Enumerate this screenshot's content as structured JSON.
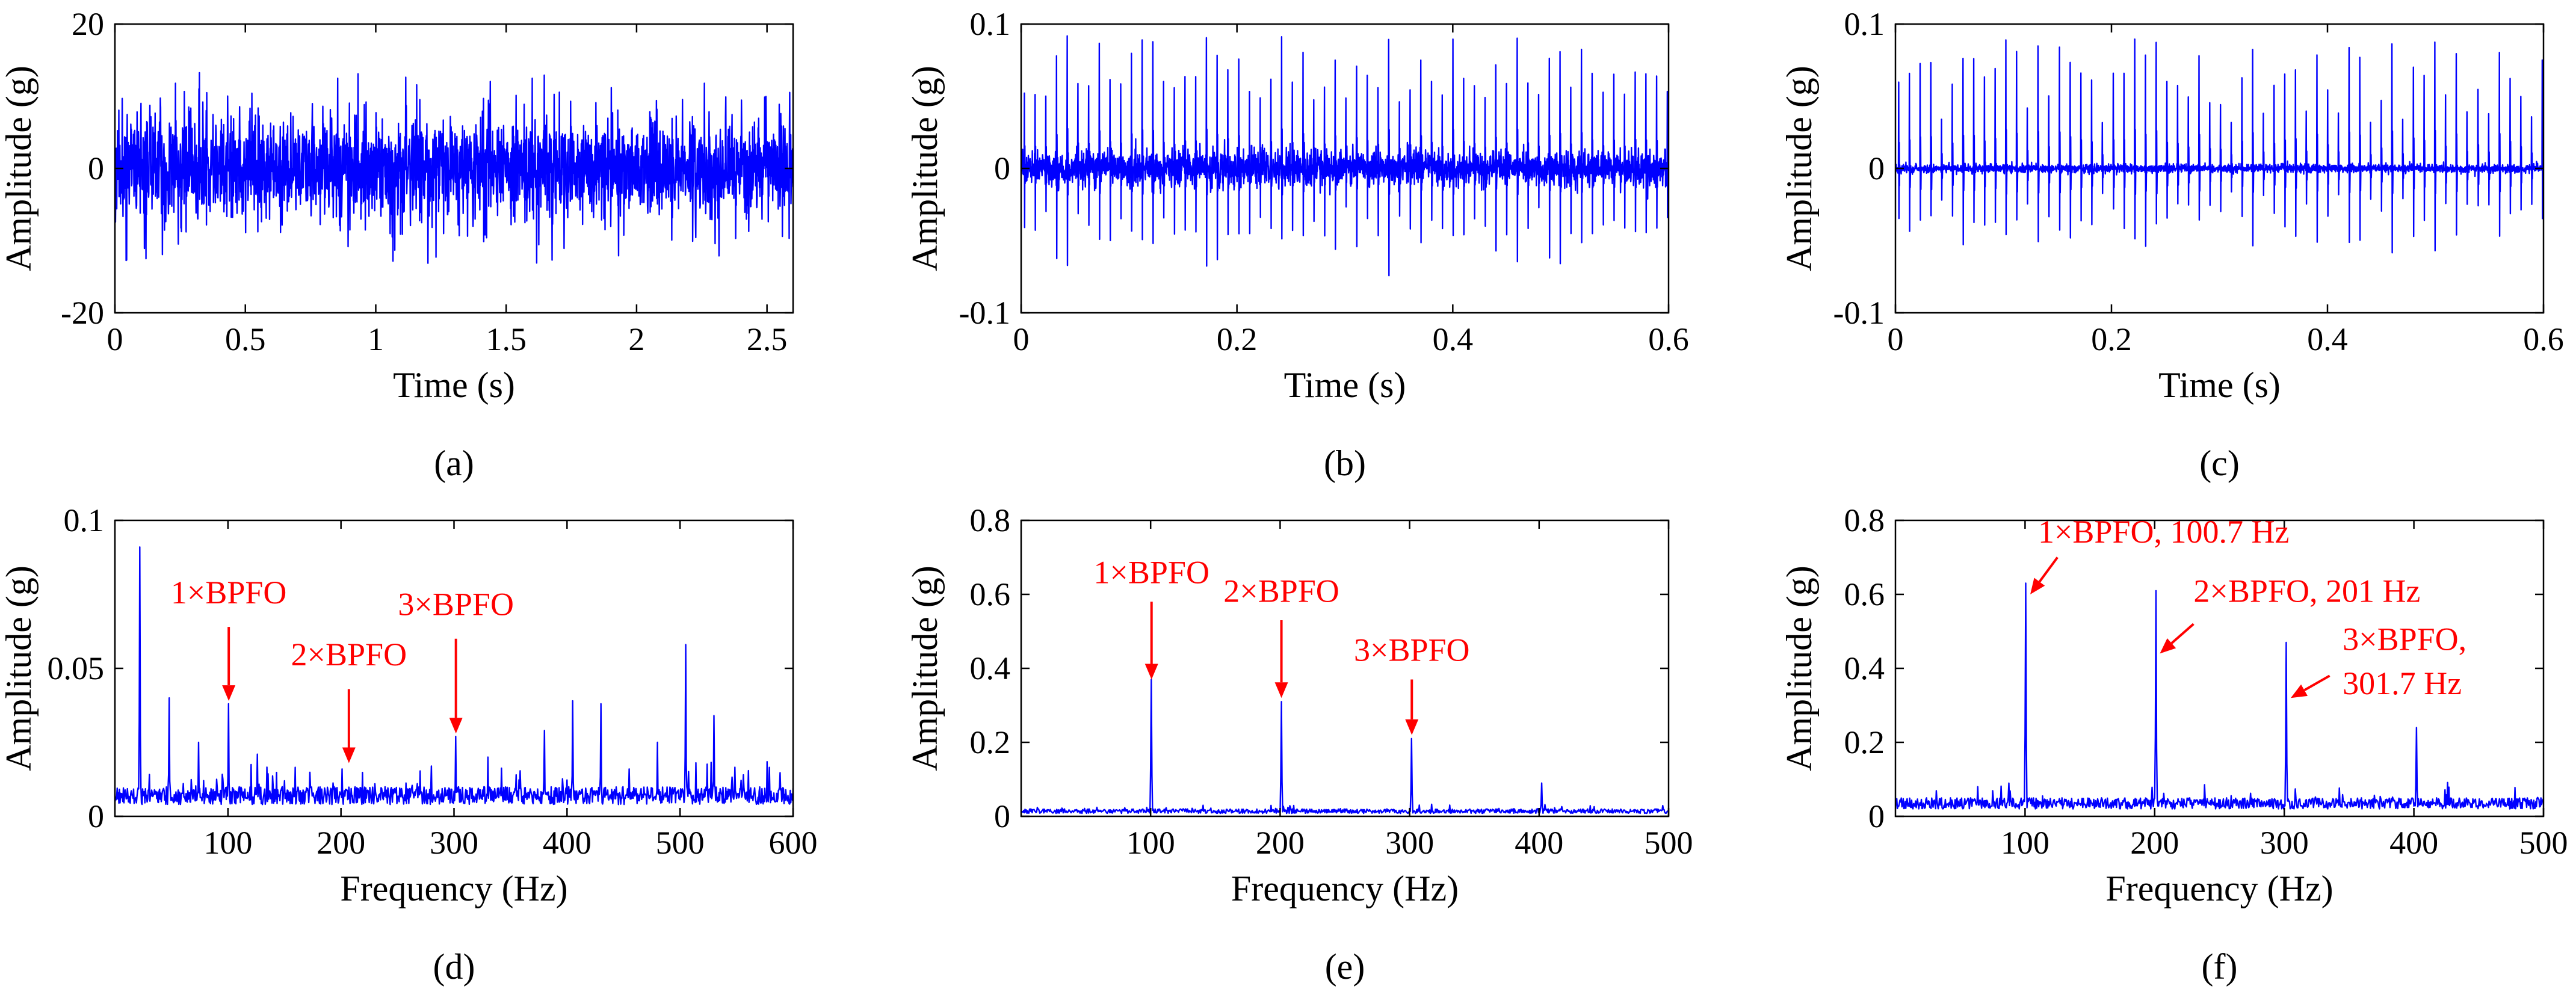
{
  "figure": {
    "colors": {
      "signal": "#0000ff",
      "annotation": "#ff0000",
      "axis": "#000000"
    }
  },
  "chart_data": [
    {
      "id": "a",
      "caption": "(a)",
      "type": "line",
      "xlabel": "Time (s)",
      "ylabel": "Amplitude (g)",
      "xlim": [
        0,
        2.6
      ],
      "ylim": [
        -20,
        20
      ],
      "xticks": [
        0,
        0.5,
        1,
        1.5,
        2,
        2.5
      ],
      "xtick_labels": [
        "0",
        "0.5",
        "1",
        "1.5",
        "2",
        "2.5"
      ],
      "yticks": [
        -20,
        0,
        20
      ],
      "ytick_labels": [
        "-20",
        "0",
        "20"
      ],
      "signal": {
        "kind": "noise",
        "seed": 11,
        "n": 2600,
        "base_amplitude": 8,
        "max_amplitude": 14,
        "max_y": 14,
        "min_y": -15
      },
      "annotations": []
    },
    {
      "id": "b",
      "caption": "(b)",
      "type": "line",
      "xlabel": "Time (s)",
      "ylabel": "Amplitude (g)",
      "xlim": [
        0,
        0.6
      ],
      "ylim": [
        -0.1,
        0.1
      ],
      "xticks": [
        0,
        0.2,
        0.4,
        0.6
      ],
      "xtick_labels": [
        "0",
        "0.2",
        "0.4",
        "0.6"
      ],
      "yticks": [
        -0.1,
        0,
        0.1
      ],
      "ytick_labels": [
        "-0.1",
        "0",
        "0.1"
      ],
      "signal": {
        "kind": "impulses",
        "seed": 23,
        "n": 2600,
        "period": 0.00993,
        "noise": 0.006,
        "peak_min": 0.045,
        "peak_max": 0.092,
        "neg_ratio": 0.85
      },
      "annotations": []
    },
    {
      "id": "c",
      "caption": "(c)",
      "type": "line",
      "xlabel": "Time (s)",
      "ylabel": "Amplitude (g)",
      "xlim": [
        0,
        0.6
      ],
      "ylim": [
        -0.1,
        0.1
      ],
      "xticks": [
        0,
        0.2,
        0.4,
        0.6
      ],
      "xtick_labels": [
        "0",
        "0.2",
        "0.4",
        "0.6"
      ],
      "yticks": [
        -0.1,
        0,
        0.1
      ],
      "ytick_labels": [
        "-0.1",
        "0",
        "0.1"
      ],
      "signal": {
        "kind": "impulses",
        "seed": 37,
        "n": 2600,
        "period": 0.00993,
        "noise": 0.0015,
        "peak_min": 0.03,
        "peak_max": 0.09,
        "neg_ratio": 0.7
      },
      "annotations": []
    },
    {
      "id": "d",
      "caption": "(d)",
      "type": "line",
      "xlabel": "Frequency (Hz)",
      "ylabel": "Amplitude (g)",
      "xlim": [
        0,
        600
      ],
      "ylim": [
        0,
        0.1
      ],
      "xticks": [
        100,
        200,
        300,
        400,
        500,
        600
      ],
      "xtick_labels": [
        "100",
        "200",
        "300",
        "400",
        "500",
        "600"
      ],
      "yticks": [
        0,
        0.05,
        0.1
      ],
      "ytick_labels": [
        "0",
        "0.05",
        "0.1"
      ],
      "signal": {
        "kind": "spectrum",
        "seed": 51,
        "xmax": 600,
        "n": 1200,
        "floor": 0.004,
        "floor_var": 0.006,
        "peaks": [
          [
            22,
            0.091
          ],
          [
            48,
            0.04
          ],
          [
            74,
            0.025
          ],
          [
            100.7,
            0.038
          ],
          [
            126,
            0.021
          ],
          [
            150,
            0.012
          ],
          [
            201,
            0.016
          ],
          [
            230,
            0.011
          ],
          [
            280,
            0.017
          ],
          [
            301.7,
            0.027
          ],
          [
            330,
            0.02
          ],
          [
            355,
            0.014
          ],
          [
            380,
            0.029
          ],
          [
            405,
            0.039
          ],
          [
            430,
            0.038
          ],
          [
            455,
            0.016
          ],
          [
            480,
            0.025
          ],
          [
            505,
            0.058
          ],
          [
            530,
            0.034
          ],
          [
            556,
            0.014
          ]
        ]
      },
      "annotations": [
        {
          "text": "1×BPFO",
          "tip": [
            100.7,
            0.039
          ],
          "tail": [
            100.7,
            0.064
          ],
          "label": [
            100.7,
            0.072
          ],
          "anchor": "middle"
        },
        {
          "text": "2×BPFO",
          "tip": [
            207,
            0.018
          ],
          "tail": [
            207,
            0.043
          ],
          "label": [
            207,
            0.051
          ],
          "anchor": "middle"
        },
        {
          "text": "3×BPFO",
          "tip": [
            301.7,
            0.028
          ],
          "tail": [
            301.7,
            0.06
          ],
          "label": [
            301.7,
            0.068
          ],
          "anchor": "middle"
        }
      ]
    },
    {
      "id": "e",
      "caption": "(e)",
      "type": "line",
      "xlabel": "Frequency (Hz)",
      "ylabel": "Amplitude (g)",
      "xlim": [
        0,
        500
      ],
      "ylim": [
        0,
        0.8
      ],
      "xticks": [
        100,
        200,
        300,
        400,
        500
      ],
      "xtick_labels": [
        "100",
        "200",
        "300",
        "400",
        "500"
      ],
      "yticks": [
        0,
        0.2,
        0.4,
        0.6,
        0.8
      ],
      "ytick_labels": [
        "0",
        "0.2",
        "0.4",
        "0.6",
        "0.8"
      ],
      "signal": {
        "kind": "spectrum",
        "seed": 63,
        "xmax": 500,
        "n": 1000,
        "floor": 0.008,
        "floor_var": 0.012,
        "peaks": [
          [
            100.7,
            0.37
          ],
          [
            201,
            0.31
          ],
          [
            301.7,
            0.21
          ],
          [
            402,
            0.09
          ]
        ]
      },
      "annotations": [
        {
          "text": "1×BPFO",
          "tip": [
            100.7,
            0.37
          ],
          "tail": [
            100.7,
            0.58
          ],
          "label": [
            100.7,
            0.63
          ],
          "anchor": "middle"
        },
        {
          "text": "2×BPFO",
          "tip": [
            201,
            0.32
          ],
          "tail": [
            201,
            0.53
          ],
          "label": [
            201,
            0.58
          ],
          "anchor": "middle"
        },
        {
          "text": "3×BPFO",
          "tip": [
            301.7,
            0.22
          ],
          "tail": [
            301.7,
            0.37
          ],
          "label": [
            301.7,
            0.42
          ],
          "anchor": "middle"
        }
      ]
    },
    {
      "id": "f",
      "caption": "(f)",
      "type": "line",
      "xlabel": "Frequency (Hz)",
      "ylabel": "Amplitude (g)",
      "xlim": [
        0,
        500
      ],
      "ylim": [
        0,
        0.8
      ],
      "xticks": [
        100,
        200,
        300,
        400,
        500
      ],
      "xtick_labels": [
        "100",
        "200",
        "300",
        "400",
        "500"
      ],
      "yticks": [
        0,
        0.2,
        0.4,
        0.6,
        0.8
      ],
      "ytick_labels": [
        "0",
        "0.2",
        "0.4",
        "0.6",
        "0.8"
      ],
      "signal": {
        "kind": "spectrum",
        "seed": 79,
        "xmax": 500,
        "n": 1000,
        "floor": 0.02,
        "floor_var": 0.03,
        "peaks": [
          [
            100.7,
            0.63
          ],
          [
            201,
            0.61
          ],
          [
            301.7,
            0.47
          ],
          [
            402,
            0.24
          ]
        ]
      },
      "annotations": [
        {
          "text": "1×BPFO, 100.7 Hz",
          "tip": [
            104,
            0.6
          ],
          "tail": [
            125,
            0.7
          ],
          "label": [
            110,
            0.74
          ],
          "anchor": "start"
        },
        {
          "text": "2×BPFO, 201 Hz",
          "tip": [
            204,
            0.44
          ],
          "tail": [
            230,
            0.52
          ],
          "label": [
            230,
            0.58
          ],
          "anchor": "start"
        },
        {
          "text": "3×BPFO,",
          "tip": [
            305,
            0.32
          ],
          "tail": [
            335,
            0.38
          ],
          "label": [
            345,
            0.45
          ],
          "anchor": "start"
        },
        {
          "text": "301.7 Hz",
          "tip": null,
          "tail": null,
          "label": [
            345,
            0.33
          ],
          "anchor": "start"
        }
      ]
    }
  ]
}
